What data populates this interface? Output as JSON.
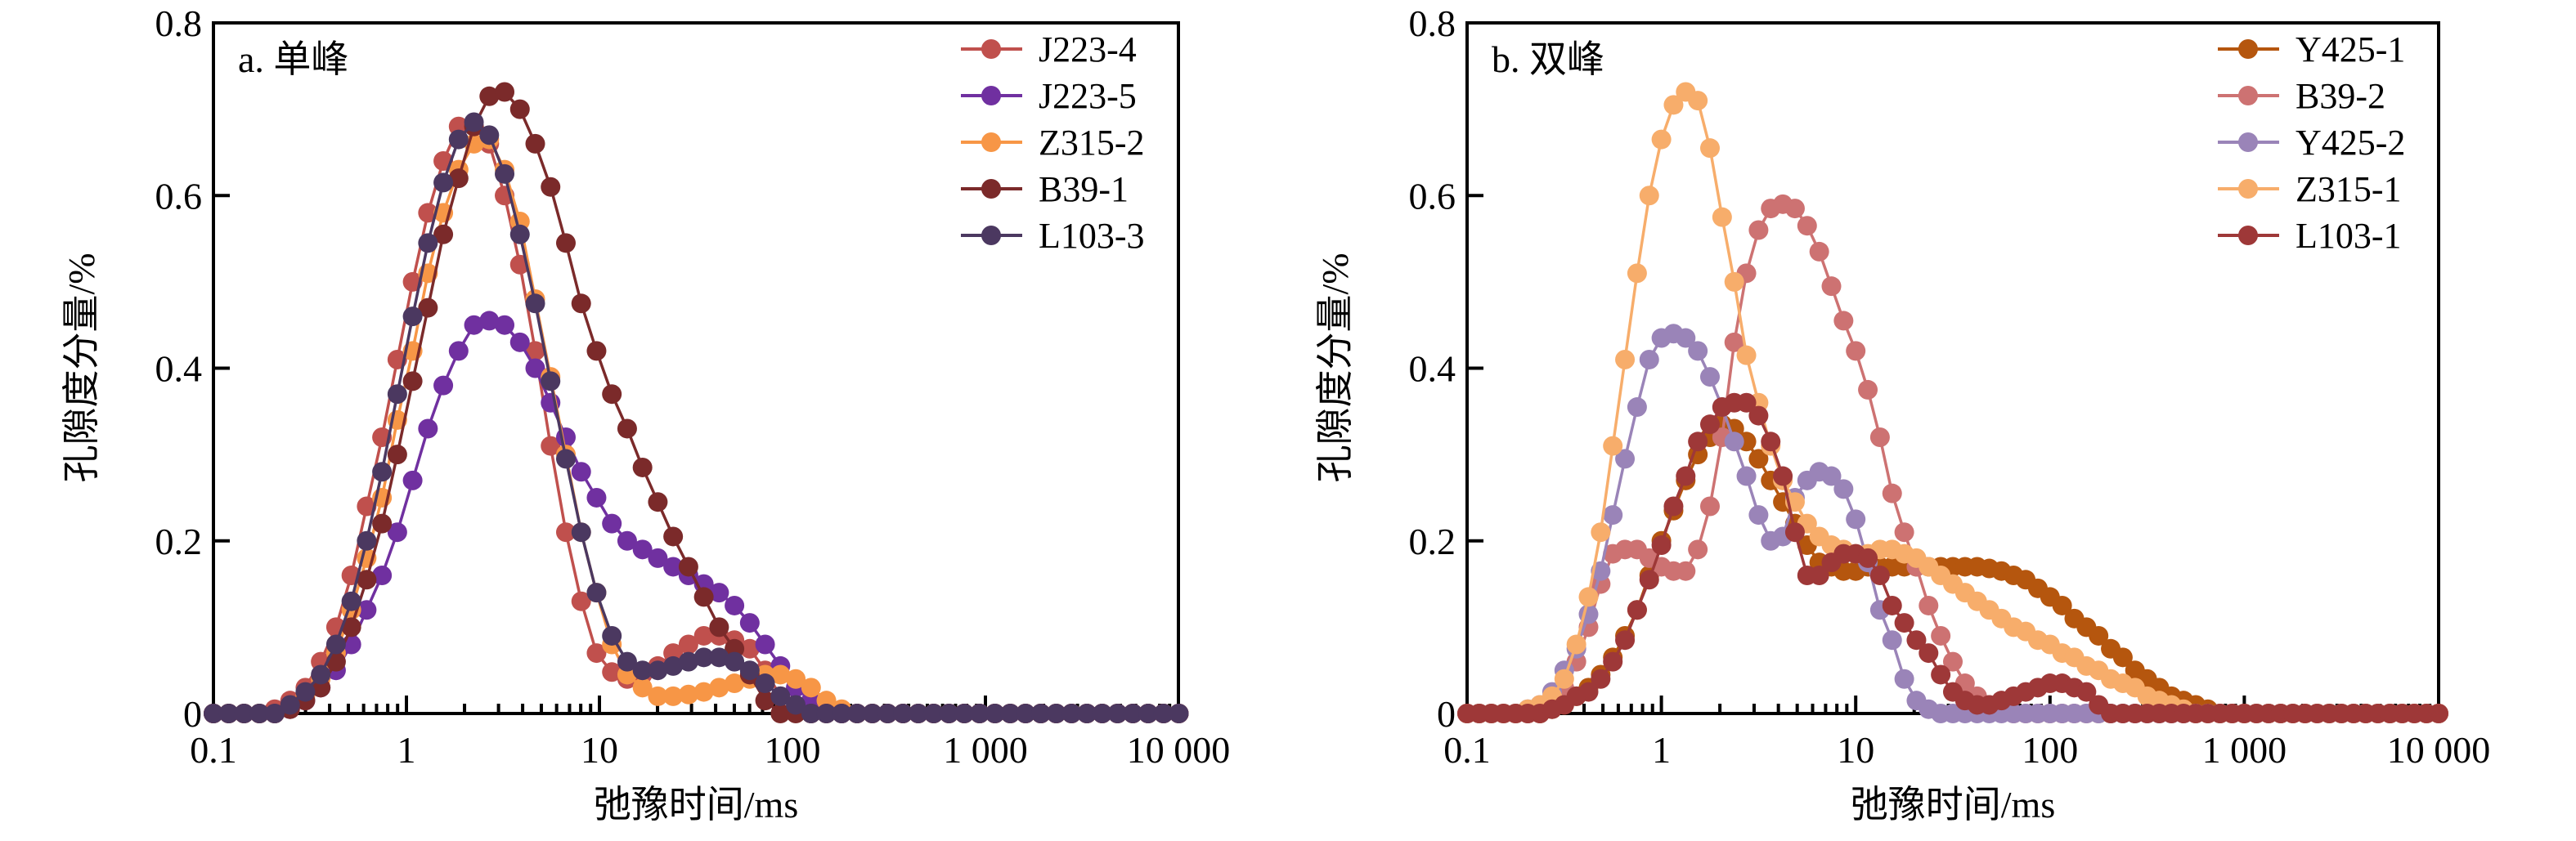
{
  "chart_data": [
    {
      "type": "line",
      "panel_label": "a. 单峰",
      "xlabel": "弛豫时间/ms",
      "ylabel": "孔隙度分量/%",
      "xscale": "log",
      "xlim": [
        0.1,
        10000
      ],
      "ylim": [
        0,
        0.8
      ],
      "xticks": [
        0.1,
        1,
        10,
        100,
        1000,
        10000
      ],
      "xtick_labels": [
        "0.1",
        "1",
        "10",
        "100",
        "1 000",
        "10 000"
      ],
      "yticks": [
        0,
        0.2,
        0.4,
        0.6,
        0.8
      ],
      "ytick_labels": [
        "0",
        "0.2",
        "0.4",
        "0.6",
        "0.8"
      ],
      "grid": false,
      "legend_position": "top-right",
      "x_log_start": -1,
      "x_log_step": 0.0794,
      "series": [
        {
          "name": "J223-4",
          "color": "#C0504D",
          "values": [
            0,
            0,
            0,
            0,
            0.005,
            0.015,
            0.03,
            0.06,
            0.1,
            0.16,
            0.24,
            0.32,
            0.41,
            0.5,
            0.58,
            0.64,
            0.68,
            0.68,
            0.66,
            0.6,
            0.52,
            0.42,
            0.31,
            0.21,
            0.13,
            0.07,
            0.048,
            0.04,
            0.045,
            0.055,
            0.07,
            0.08,
            0.09,
            0.09,
            0.085,
            0.075,
            0.05,
            0.02,
            0.005,
            0,
            0,
            0,
            0,
            0,
            0,
            0,
            0,
            0,
            0,
            0,
            0,
            0,
            0,
            0,
            0,
            0,
            0,
            0,
            0,
            0,
            0,
            0,
            0,
            0
          ]
        },
        {
          "name": "J223-5",
          "color": "#7030A0",
          "values": [
            0,
            0,
            0,
            0,
            0,
            0.005,
            0.015,
            0.03,
            0.05,
            0.08,
            0.12,
            0.16,
            0.21,
            0.27,
            0.33,
            0.38,
            0.42,
            0.45,
            0.455,
            0.45,
            0.43,
            0.4,
            0.36,
            0.32,
            0.28,
            0.25,
            0.22,
            0.2,
            0.19,
            0.18,
            0.17,
            0.16,
            0.15,
            0.14,
            0.125,
            0.105,
            0.08,
            0.055,
            0.03,
            0.015,
            0.005,
            0,
            0,
            0,
            0,
            0,
            0,
            0,
            0,
            0,
            0,
            0,
            0,
            0,
            0,
            0,
            0,
            0,
            0,
            0,
            0,
            0,
            0,
            0
          ]
        },
        {
          "name": "Z315-2",
          "color": "#F79646",
          "values": [
            0,
            0,
            0,
            0,
            0,
            0.008,
            0.02,
            0.04,
            0.07,
            0.12,
            0.18,
            0.25,
            0.34,
            0.42,
            0.51,
            0.58,
            0.63,
            0.66,
            0.665,
            0.63,
            0.57,
            0.48,
            0.39,
            0.3,
            0.21,
            0.14,
            0.08,
            0.045,
            0.03,
            0.02,
            0.02,
            0.022,
            0.025,
            0.03,
            0.035,
            0.04,
            0.045,
            0.045,
            0.04,
            0.03,
            0.015,
            0.005,
            0,
            0,
            0,
            0,
            0,
            0,
            0,
            0,
            0,
            0,
            0,
            0,
            0,
            0,
            0,
            0,
            0,
            0,
            0,
            0,
            0,
            0
          ]
        },
        {
          "name": "B39-1",
          "color": "#7B2A2A",
          "values": [
            0,
            0,
            0,
            0,
            0,
            0.005,
            0.015,
            0.03,
            0.06,
            0.1,
            0.155,
            0.22,
            0.3,
            0.385,
            0.47,
            0.555,
            0.62,
            0.68,
            0.715,
            0.72,
            0.7,
            0.66,
            0.61,
            0.545,
            0.475,
            0.42,
            0.37,
            0.33,
            0.285,
            0.245,
            0.205,
            0.17,
            0.135,
            0.1,
            0.075,
            0.045,
            0.015,
            0,
            0,
            0,
            0,
            0,
            0,
            0,
            0,
            0,
            0,
            0,
            0,
            0,
            0,
            0,
            0,
            0,
            0,
            0,
            0,
            0,
            0,
            0,
            0,
            0,
            0,
            0
          ]
        },
        {
          "name": "L103-3",
          "color": "#4B3860",
          "values": [
            0,
            0,
            0,
            0,
            0,
            0.01,
            0.025,
            0.045,
            0.08,
            0.13,
            0.2,
            0.28,
            0.37,
            0.46,
            0.545,
            0.615,
            0.665,
            0.685,
            0.67,
            0.625,
            0.555,
            0.475,
            0.385,
            0.295,
            0.21,
            0.14,
            0.09,
            0.06,
            0.05,
            0.05,
            0.055,
            0.06,
            0.065,
            0.065,
            0.06,
            0.05,
            0.035,
            0.02,
            0.01,
            0,
            0,
            0,
            0,
            0,
            0,
            0,
            0,
            0,
            0,
            0,
            0,
            0,
            0,
            0,
            0,
            0,
            0,
            0,
            0,
            0,
            0,
            0,
            0,
            0
          ]
        }
      ]
    },
    {
      "type": "line",
      "panel_label": "b. 双峰",
      "xlabel": "弛豫时间/ms",
      "ylabel": "孔隙度分量/%",
      "xscale": "log",
      "xlim": [
        0.1,
        10000
      ],
      "ylim": [
        0,
        0.8
      ],
      "xticks": [
        0.1,
        1,
        10,
        100,
        1000,
        10000
      ],
      "xtick_labels": [
        "0.1",
        "1",
        "10",
        "100",
        "1 000",
        "10 000"
      ],
      "yticks": [
        0,
        0.2,
        0.4,
        0.6,
        0.8
      ],
      "ytick_labels": [
        "0",
        "0.2",
        "0.4",
        "0.6",
        "0.8"
      ],
      "grid": false,
      "legend_position": "top-right",
      "x_log_start": -1,
      "x_log_step": 0.0625,
      "series": [
        {
          "name": "Y425-1",
          "color": "#B5560E",
          "values": [
            0,
            0,
            0,
            0,
            0,
            0,
            0,
            0.005,
            0.01,
            0.02,
            0.03,
            0.045,
            0.065,
            0.09,
            0.12,
            0.16,
            0.2,
            0.235,
            0.27,
            0.3,
            0.32,
            0.335,
            0.33,
            0.315,
            0.295,
            0.27,
            0.245,
            0.22,
            0.195,
            0.175,
            0.17,
            0.165,
            0.165,
            0.17,
            0.17,
            0.17,
            0.17,
            0.17,
            0.17,
            0.17,
            0.17,
            0.17,
            0.17,
            0.168,
            0.165,
            0.16,
            0.155,
            0.145,
            0.135,
            0.125,
            0.11,
            0.1,
            0.09,
            0.075,
            0.065,
            0.05,
            0.04,
            0.03,
            0.02,
            0.015,
            0.01,
            0.005,
            0,
            0,
            0,
            0,
            0,
            0,
            0,
            0,
            0,
            0,
            0,
            0,
            0,
            0,
            0,
            0,
            0,
            0,
            0
          ]
        },
        {
          "name": "B39-2",
          "color": "#CD7272",
          "values": [
            0,
            0,
            0,
            0,
            0,
            0,
            0.005,
            0.015,
            0.03,
            0.06,
            0.1,
            0.15,
            0.185,
            0.19,
            0.19,
            0.18,
            0.17,
            0.165,
            0.165,
            0.19,
            0.24,
            0.32,
            0.43,
            0.51,
            0.56,
            0.585,
            0.59,
            0.585,
            0.565,
            0.535,
            0.495,
            0.455,
            0.42,
            0.375,
            0.32,
            0.255,
            0.21,
            0.17,
            0.125,
            0.09,
            0.06,
            0.035,
            0.02,
            0.01,
            0.005,
            0,
            0,
            0,
            0,
            0,
            0,
            0,
            0,
            0,
            0,
            0,
            0,
            0,
            0,
            0,
            0,
            0,
            0,
            0,
            0,
            0,
            0,
            0,
            0,
            0,
            0,
            0,
            0,
            0,
            0,
            0,
            0,
            0,
            0,
            0,
            0
          ]
        },
        {
          "name": "Y425-2",
          "color": "#9A84B8",
          "values": [
            0,
            0,
            0,
            0,
            0,
            0.005,
            0.01,
            0.025,
            0.05,
            0.075,
            0.115,
            0.165,
            0.23,
            0.295,
            0.355,
            0.41,
            0.435,
            0.44,
            0.435,
            0.42,
            0.39,
            0.355,
            0.315,
            0.275,
            0.23,
            0.2,
            0.205,
            0.25,
            0.27,
            0.28,
            0.275,
            0.26,
            0.225,
            0.175,
            0.12,
            0.085,
            0.04,
            0.015,
            0.005,
            0,
            0,
            0,
            0,
            0,
            0,
            0,
            0,
            0,
            0,
            0,
            0,
            0,
            0,
            0,
            0,
            0,
            0,
            0,
            0,
            0,
            0,
            0,
            0,
            0,
            0,
            0,
            0,
            0,
            0,
            0,
            0,
            0,
            0,
            0,
            0,
            0,
            0,
            0,
            0,
            0,
            0
          ]
        },
        {
          "name": "Z315-1",
          "color": "#F7AD6B",
          "values": [
            0,
            0,
            0,
            0,
            0,
            0.005,
            0.01,
            0.02,
            0.04,
            0.08,
            0.135,
            0.21,
            0.31,
            0.41,
            0.51,
            0.6,
            0.665,
            0.705,
            0.72,
            0.71,
            0.655,
            0.575,
            0.5,
            0.415,
            0.36,
            0.31,
            0.27,
            0.245,
            0.22,
            0.205,
            0.195,
            0.19,
            0.185,
            0.185,
            0.19,
            0.19,
            0.185,
            0.18,
            0.17,
            0.16,
            0.15,
            0.14,
            0.13,
            0.12,
            0.11,
            0.1,
            0.095,
            0.085,
            0.08,
            0.07,
            0.065,
            0.055,
            0.05,
            0.04,
            0.035,
            0.03,
            0.02,
            0.015,
            0.01,
            0.005,
            0,
            0,
            0,
            0,
            0,
            0,
            0,
            0,
            0,
            0,
            0,
            0,
            0,
            0,
            0,
            0,
            0,
            0,
            0,
            0,
            0
          ]
        },
        {
          "name": "L103-1",
          "color": "#9E3838",
          "values": [
            0,
            0,
            0,
            0,
            0,
            0,
            0,
            0.005,
            0.01,
            0.02,
            0.025,
            0.04,
            0.06,
            0.085,
            0.12,
            0.155,
            0.195,
            0.24,
            0.275,
            0.315,
            0.335,
            0.355,
            0.36,
            0.36,
            0.345,
            0.315,
            0.275,
            0.21,
            0.16,
            0.16,
            0.175,
            0.185,
            0.185,
            0.18,
            0.16,
            0.125,
            0.105,
            0.085,
            0.07,
            0.045,
            0.025,
            0.015,
            0.01,
            0.01,
            0.015,
            0.02,
            0.025,
            0.03,
            0.035,
            0.035,
            0.03,
            0.025,
            0.01,
            0,
            0,
            0,
            0,
            0,
            0,
            0,
            0,
            0,
            0,
            0,
            0,
            0,
            0,
            0,
            0,
            0,
            0,
            0,
            0,
            0,
            0,
            0,
            0,
            0,
            0,
            0,
            0
          ]
        }
      ]
    }
  ]
}
